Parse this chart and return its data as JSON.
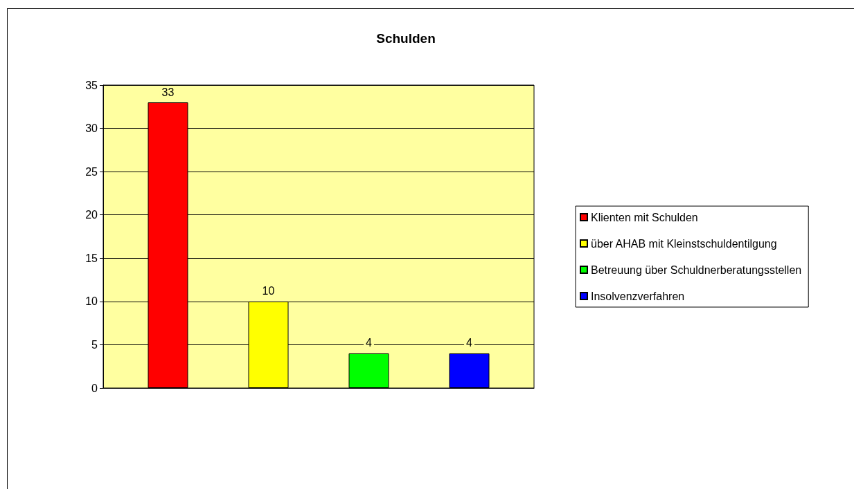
{
  "chart_data": {
    "type": "bar",
    "title": "Schulden",
    "categories": [
      null
    ],
    "series": [
      {
        "name": "Klienten mit Schulden",
        "color": "#ff0000",
        "values": [
          33
        ]
      },
      {
        "name": "über AHAB mit Kleinstschuldentilgung",
        "color": "#ffff00",
        "values": [
          10
        ]
      },
      {
        "name": "Betreuung über Schuldnerberatungsstellen",
        "color": "#00ff00",
        "values": [
          4
        ]
      },
      {
        "name": "Insolvenzverfahren",
        "color": "#0000ff",
        "values": [
          4
        ]
      }
    ],
    "ylim": [
      0,
      35
    ],
    "yticks": [
      0,
      5,
      10,
      15,
      20,
      25,
      30,
      35
    ],
    "grid": "y",
    "legend": "right",
    "data_labels": true
  }
}
